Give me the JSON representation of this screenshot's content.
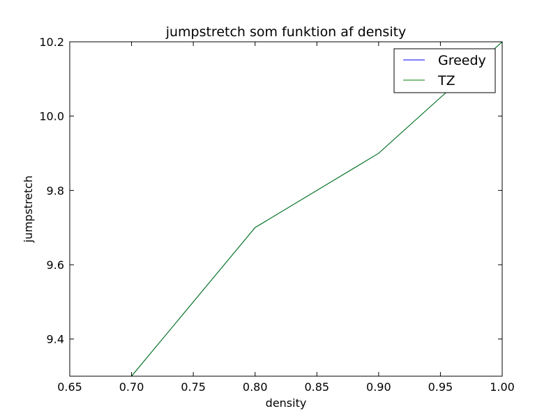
{
  "chart_data": {
    "type": "line",
    "title": "jumpstretch som funktion af density",
    "xlabel": "density",
    "ylabel": "jumpstretch",
    "xlim": [
      0.65,
      1.0
    ],
    "ylim": [
      9.3,
      10.2
    ],
    "xticks": [
      "0.65",
      "0.70",
      "0.75",
      "0.80",
      "0.85",
      "0.90",
      "0.95",
      "1.00"
    ],
    "yticks": [
      "9.4",
      "9.6",
      "9.8",
      "10.0",
      "10.2"
    ],
    "grid": false,
    "legend_position": "top-right",
    "series": [
      {
        "name": "Greedy",
        "color": "#0000ff",
        "x": [
          0.7,
          0.8,
          0.9,
          1.0
        ],
        "y": [
          9.3,
          9.7,
          9.9,
          10.2
        ]
      },
      {
        "name": "TZ",
        "color": "#008000",
        "x": [
          0.7,
          0.8,
          0.9,
          1.0
        ],
        "y": [
          9.3,
          9.7,
          9.9,
          10.2
        ]
      }
    ]
  }
}
